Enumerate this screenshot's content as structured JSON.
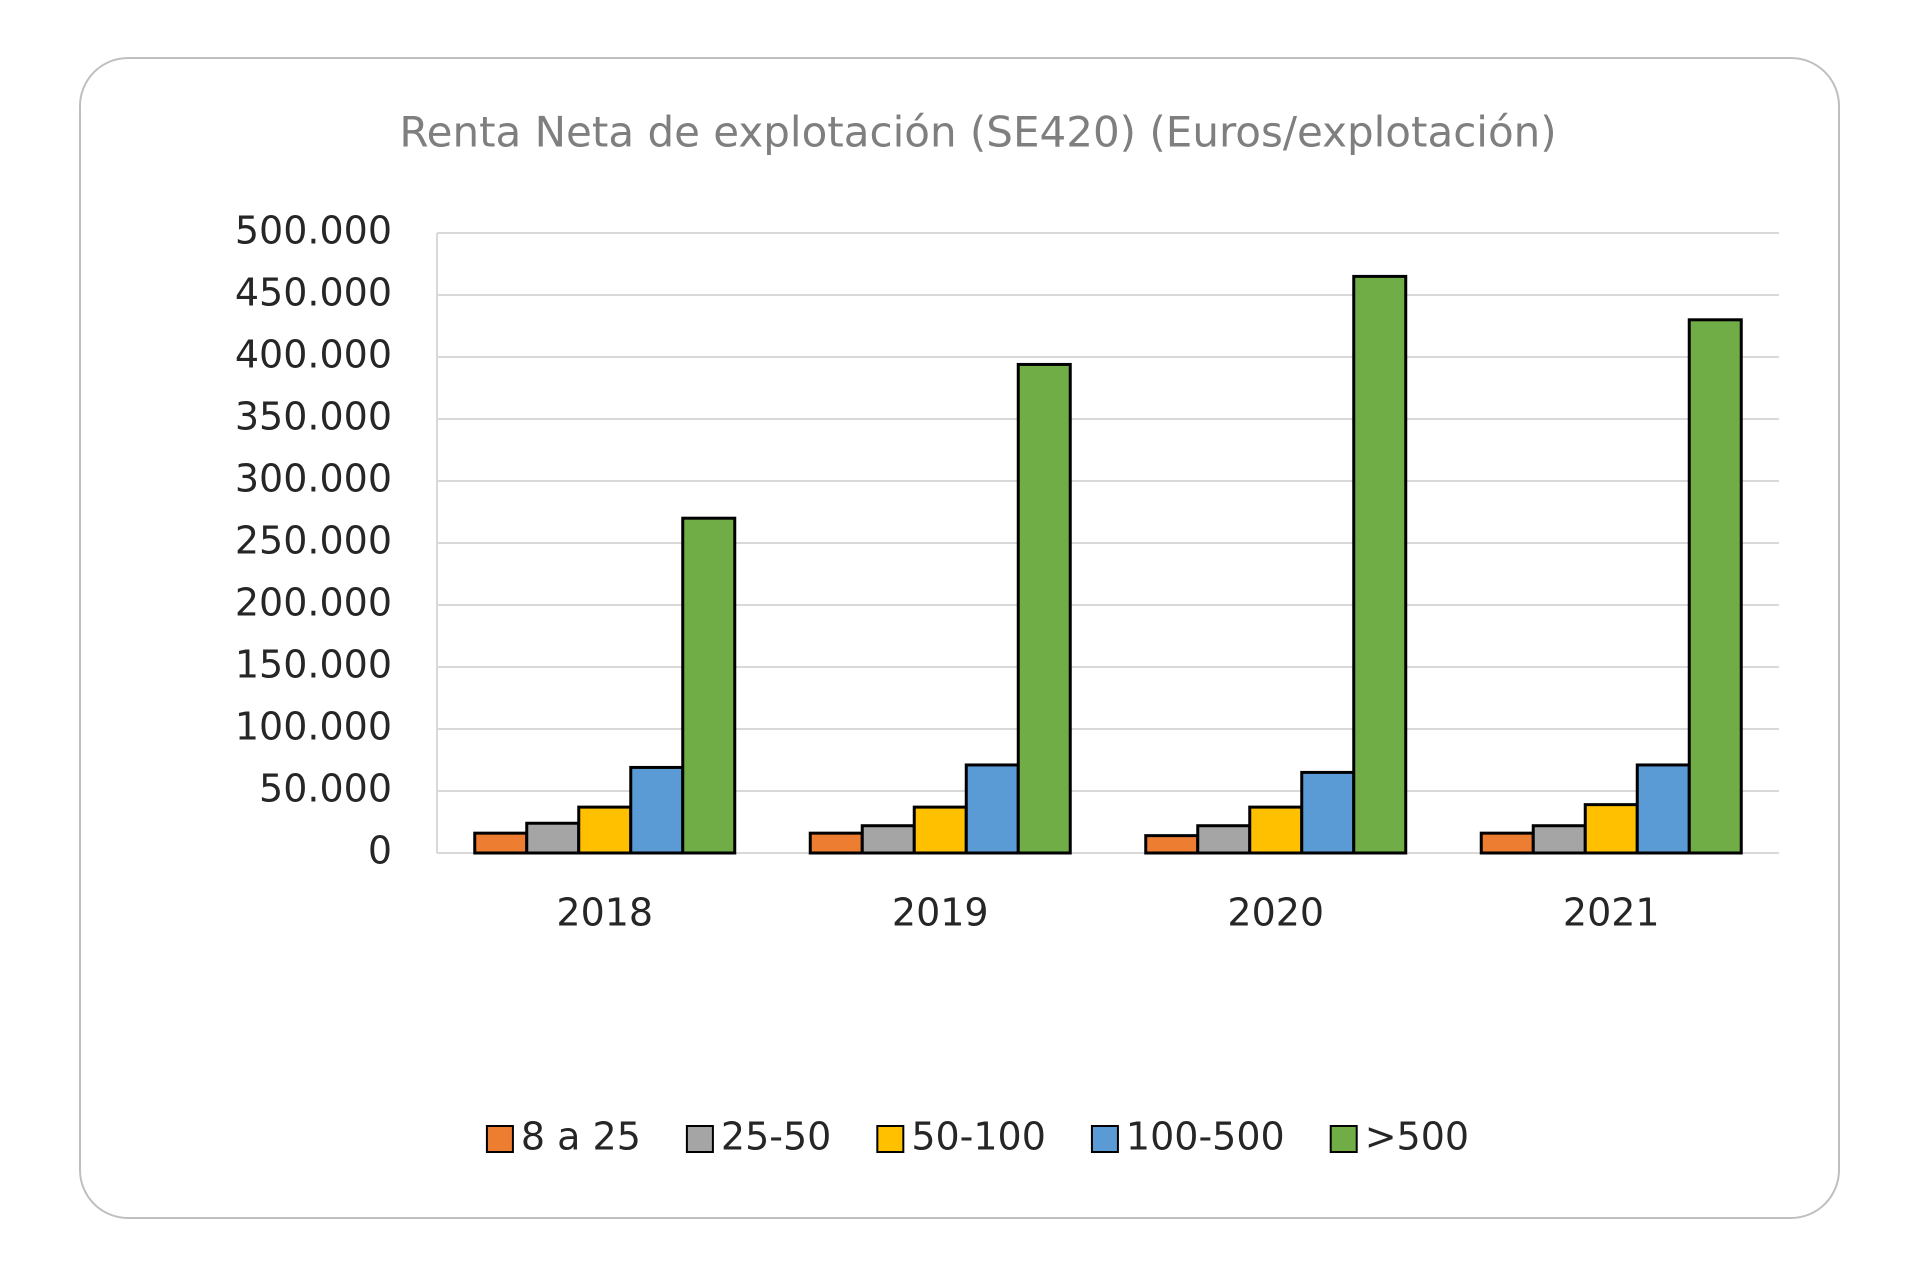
{
  "chart_data": {
    "type": "bar",
    "title": "Renta Neta de explotación (SE420) (Euros/explotación)",
    "categories": [
      "2018",
      "2019",
      "2020",
      "2021"
    ],
    "series": [
      {
        "name": "8 a 25",
        "color": "#ed7d31",
        "values": [
          16000,
          16000,
          14000,
          16000
        ]
      },
      {
        "name": "25-50",
        "color": "#a5a5a5",
        "values": [
          24000,
          22000,
          22000,
          22000
        ]
      },
      {
        "name": "50-100",
        "color": "#ffc000",
        "values": [
          37000,
          37000,
          37000,
          39000
        ]
      },
      {
        "name": "100-500",
        "color": "#5b9bd5",
        "values": [
          69000,
          71000,
          65000,
          71000
        ]
      },
      {
        "name": ">500",
        "color": "#70ad47",
        "values": [
          270000,
          394000,
          465000,
          430000
        ]
      }
    ],
    "ylim": [
      0,
      500000
    ],
    "yticks": [
      0,
      {
        "value": 50000,
        "label": "50.000"
      },
      {
        "value": 100000,
        "label": "100.000"
      },
      {
        "value": 150000,
        "label": "150.000"
      },
      {
        "value": 200000,
        "label": "200.000"
      },
      {
        "value": 250000,
        "label": "250.000"
      },
      {
        "value": 300000,
        "label": "300.000"
      },
      {
        "value": 350000,
        "label": "350.000"
      },
      {
        "value": 400000,
        "label": "400.000"
      },
      {
        "value": 450000,
        "label": "450.000"
      },
      {
        "value": 500000,
        "label": "500.000"
      }
    ],
    "grid": true,
    "legend": "bottom"
  }
}
